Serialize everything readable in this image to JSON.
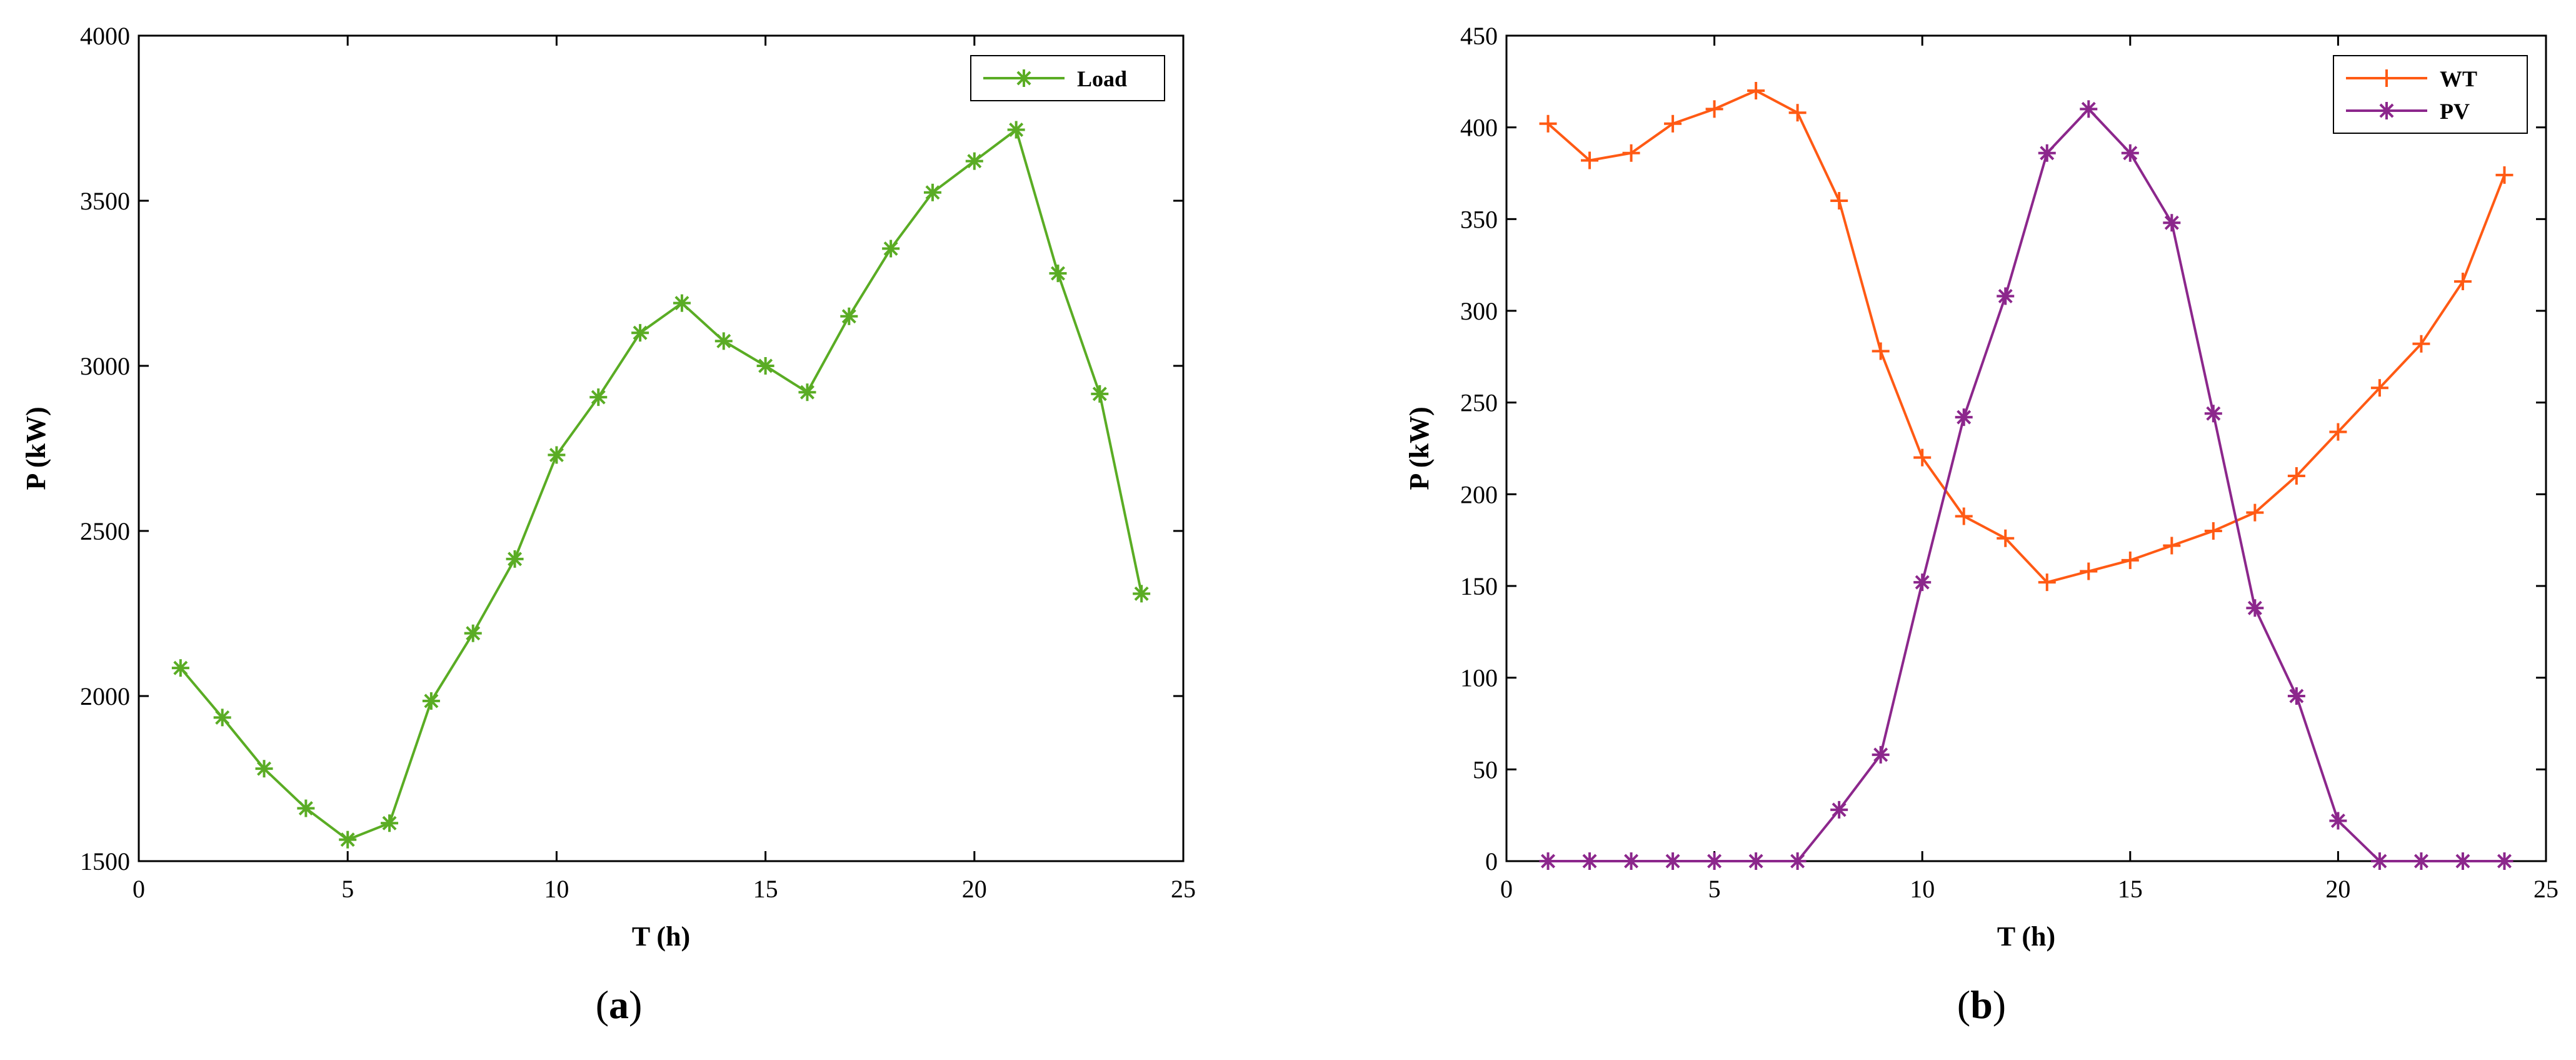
{
  "chart_data": [
    {
      "type": "line",
      "xlabel": "T (h)",
      "ylabel": "P (kW)",
      "xlim": [
        0,
        25
      ],
      "ylim": [
        1500,
        4000
      ],
      "xticks": [
        0,
        5,
        10,
        15,
        20,
        25
      ],
      "yticks": [
        1500,
        2000,
        2500,
        3000,
        3500,
        4000
      ],
      "grid": false,
      "legend_position": "top-right",
      "caption": {
        "open": "(",
        "letter": "a",
        "close": ")"
      },
      "x": [
        1,
        2,
        3,
        4,
        5,
        6,
        7,
        8,
        9,
        10,
        11,
        12,
        13,
        14,
        15,
        16,
        17,
        18,
        19,
        20,
        21,
        22,
        23,
        24
      ],
      "series": [
        {
          "name": "Load",
          "color": "#5aac24",
          "marker": "asterisk",
          "values": [
            2085,
            1935,
            1780,
            1660,
            1565,
            1615,
            1985,
            2190,
            2415,
            2730,
            2905,
            3100,
            3190,
            3075,
            3000,
            2920,
            3150,
            3355,
            3525,
            3620,
            3715,
            3280,
            2915,
            2310
          ]
        }
      ]
    },
    {
      "type": "line",
      "xlabel": "T (h)",
      "ylabel": "P (kW)",
      "xlim": [
        0,
        25
      ],
      "ylim": [
        0,
        450
      ],
      "xticks": [
        0,
        5,
        10,
        15,
        20,
        25
      ],
      "yticks": [
        0,
        50,
        100,
        150,
        200,
        250,
        300,
        350,
        400,
        450
      ],
      "grid": false,
      "legend_position": "top-right",
      "caption": {
        "open": "(",
        "letter": "b",
        "close": ")"
      },
      "x": [
        1,
        2,
        3,
        4,
        5,
        6,
        7,
        8,
        9,
        10,
        11,
        12,
        13,
        14,
        15,
        16,
        17,
        18,
        19,
        20,
        21,
        22,
        23,
        24
      ],
      "series": [
        {
          "name": "WT",
          "color": "#ff5a14",
          "marker": "plus",
          "values": [
            402,
            382,
            386,
            402,
            410,
            420,
            408,
            360,
            278,
            220,
            188,
            176,
            152,
            158,
            164,
            172,
            180,
            190,
            210,
            234,
            258,
            282,
            316,
            374
          ]
        },
        {
          "name": "PV",
          "color": "#8c278c",
          "marker": "asterisk",
          "values": [
            0,
            0,
            0,
            0,
            0,
            0,
            0,
            28,
            58,
            152,
            242,
            308,
            386,
            410,
            386,
            348,
            244,
            138,
            90,
            22,
            0,
            0,
            0,
            0
          ]
        }
      ]
    }
  ]
}
